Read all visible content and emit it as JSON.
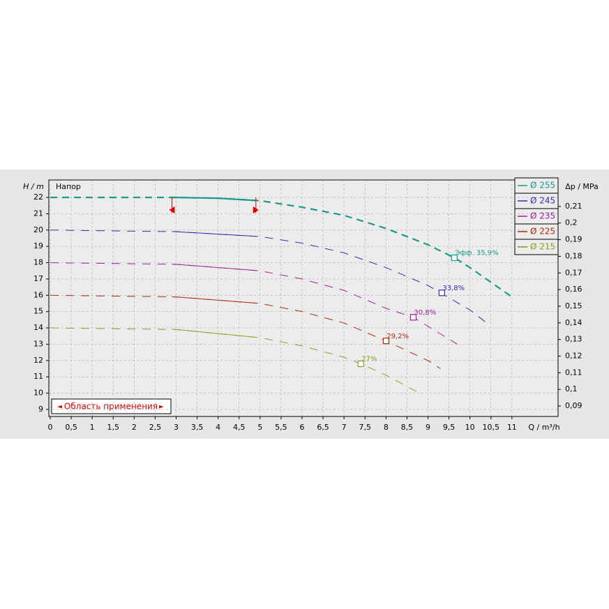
{
  "chart_data": {
    "type": "line",
    "y_label_left": "H / m",
    "y_title": "Напор",
    "y2_label": "Δp / MPa",
    "x_label": "Q / m³/h",
    "xlim": [
      0,
      12.1
    ],
    "ylim": [
      8.57,
      23.07
    ],
    "y2lim": [
      0.0837,
      0.2259
    ],
    "xticks": [
      0,
      {
        "value": 0.5,
        "label": "0,5"
      },
      1,
      {
        "value": 1.5,
        "label": "1,5"
      },
      2,
      {
        "value": 2.5,
        "label": "2,5"
      },
      3,
      {
        "value": 3.5,
        "label": "3,5"
      },
      4,
      {
        "value": 4.5,
        "label": "4,5"
      },
      5,
      {
        "value": 5.5,
        "label": "5,5"
      },
      6,
      {
        "value": 6.5,
        "label": "6,5"
      },
      7,
      {
        "value": 7.5,
        "label": "7,5"
      },
      8,
      {
        "value": 8.5,
        "label": "8,5"
      },
      9,
      {
        "value": 9.5,
        "label": "9,5"
      },
      10,
      {
        "value": 10.5,
        "label": "10,5"
      },
      11
    ],
    "yticks": [
      9,
      10,
      11,
      12,
      13,
      14,
      15,
      16,
      17,
      18,
      19,
      20,
      21,
      22
    ],
    "y2ticks": [
      {
        "value": 0.09,
        "label": "0,09"
      },
      {
        "value": 0.1,
        "label": "0,1"
      },
      {
        "value": 0.11,
        "label": "0,11"
      },
      {
        "value": 0.12,
        "label": "0,12"
      },
      {
        "value": 0.13,
        "label": "0,13"
      },
      {
        "value": 0.14,
        "label": "0,14"
      },
      {
        "value": 0.15,
        "label": "0,15"
      },
      {
        "value": 0.16,
        "label": "0,16"
      },
      {
        "value": 0.17,
        "label": "0,17"
      },
      {
        "value": 0.18,
        "label": "0,18"
      },
      {
        "value": 0.19,
        "label": "0,19"
      },
      {
        "value": 0.2,
        "label": "0,2"
      },
      {
        "value": 0.21,
        "label": "0,21"
      }
    ],
    "grid": true,
    "application_range": {
      "label": "Область применения",
      "q": [
        2.9,
        4.9
      ]
    },
    "series": [
      {
        "name": "Ø 255",
        "color": "#1a9a8a",
        "x": [
          0,
          3,
          4,
          5,
          6,
          7,
          8,
          9,
          9.63,
          10,
          11
        ],
        "values": [
          22,
          22,
          21.95,
          21.8,
          21.4,
          20.9,
          20.1,
          19.1,
          18.3,
          17.7,
          15.9
        ],
        "efficiency_point": {
          "x": 9.63,
          "y": 18.3,
          "label": "Эфф.  35,9%"
        }
      },
      {
        "name": "Ø 245",
        "color": "#3a2aa8",
        "x": [
          0,
          3,
          5,
          6,
          7,
          8,
          9,
          9.3,
          10,
          10.4
        ],
        "values": [
          20,
          19.9,
          19.6,
          19.2,
          18.6,
          17.7,
          16.6,
          16.15,
          15.1,
          14.3
        ],
        "efficiency_point": {
          "x": 9.33,
          "y": 16.15,
          "label": "33,8%"
        }
      },
      {
        "name": "Ø 235",
        "color": "#a0209a",
        "x": [
          0,
          3,
          5,
          6,
          7,
          8,
          8.65,
          9,
          9.7
        ],
        "values": [
          18,
          17.9,
          17.5,
          17.0,
          16.3,
          15.2,
          14.65,
          14.1,
          13.0
        ],
        "efficiency_point": {
          "x": 8.65,
          "y": 14.65,
          "label": "30,8%"
        }
      },
      {
        "name": "Ø 225",
        "color": "#b02a10",
        "x": [
          0,
          3,
          5,
          6,
          7,
          8,
          9,
          9.3
        ],
        "values": [
          16,
          15.9,
          15.5,
          15.0,
          14.3,
          13.2,
          12.0,
          11.5
        ],
        "efficiency_point": {
          "x": 8.0,
          "y": 13.2,
          "label": "29,2%"
        }
      },
      {
        "name": "Ø 215",
        "color": "#8aa020",
        "x": [
          0,
          3,
          5,
          6,
          7,
          7.4,
          8,
          8.8
        ],
        "values": [
          14,
          13.9,
          13.4,
          12.9,
          12.2,
          11.8,
          11.1,
          10.0
        ],
        "efficiency_point": {
          "x": 7.4,
          "y": 11.8,
          "label": "27%"
        }
      }
    ]
  }
}
